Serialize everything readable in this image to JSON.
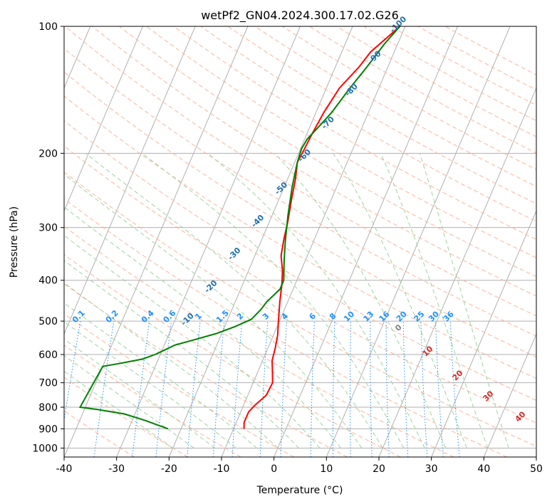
{
  "chart_data": {
    "type": "line",
    "title": "wetPf2_GN04.2024.300.17.02.G26",
    "xlabel": "Temperature (°C)",
    "ylabel": "Pressure (hPa)",
    "xlim": [
      -40,
      50
    ],
    "ylim": [
      1050,
      100
    ],
    "y_scale": "log",
    "grid": true,
    "x_ticks": [
      -40,
      -30,
      -20,
      -10,
      0,
      10,
      20,
      30,
      40,
      50
    ],
    "y_ticks": [
      100,
      200,
      300,
      400,
      500,
      600,
      700,
      800,
      900,
      1000
    ],
    "colors": {
      "temperature": "#ff0000",
      "dewpoint": "#008000",
      "isotherm": "#b0b0b0",
      "dry_adiabat": "#ffb39a",
      "moist_adiabat": "#9fd39f",
      "mixing_ratio": "#1f8fff",
      "moist_label": "#1f6fb0",
      "warm_label": "#d62728",
      "zero_label": "#808080"
    },
    "series": [
      {
        "values": [
          {
            "p": 900,
            "t": -8.0
          },
          {
            "p": 870,
            "t": -8.5
          },
          {
            "p": 820,
            "t": -8.5
          },
          {
            "p": 790,
            "t": -7.8
          },
          {
            "p": 750,
            "t": -6.5
          },
          {
            "p": 700,
            "t": -6.3
          },
          {
            "p": 660,
            "t": -7.2
          },
          {
            "p": 620,
            "t": -8.2
          },
          {
            "p": 580,
            "t": -8.6
          },
          {
            "p": 540,
            "t": -9.2
          },
          {
            "p": 500,
            "t": -10.2
          },
          {
            "p": 450,
            "t": -11.5
          },
          {
            "p": 410,
            "t": -12.5
          },
          {
            "p": 380,
            "t": -13.5
          },
          {
            "p": 350,
            "t": -15.0
          },
          {
            "p": 320,
            "t": -15.8
          },
          {
            "p": 290,
            "t": -16.5
          },
          {
            "p": 260,
            "t": -17.5
          },
          {
            "p": 230,
            "t": -18.5
          },
          {
            "p": 210,
            "t": -19.5
          },
          {
            "p": 200,
            "t": -19.3
          },
          {
            "p": 180,
            "t": -19.0
          },
          {
            "p": 160,
            "t": -18.5
          },
          {
            "p": 140,
            "t": -17.5
          },
          {
            "p": 125,
            "t": -15.5
          },
          {
            "p": 115,
            "t": -14.5
          },
          {
            "p": 100,
            "t": -11.0
          }
        ]
      },
      {
        "values": [
          {
            "p": 900,
            "t": -22.5
          },
          {
            "p": 880,
            "t": -25.0
          },
          {
            "p": 860,
            "t": -27.5
          },
          {
            "p": 830,
            "t": -32.0
          },
          {
            "p": 810,
            "t": -37.5
          },
          {
            "p": 800,
            "t": -41.0
          },
          {
            "p": 640,
            "t": -40.0
          },
          {
            "p": 630,
            "t": -37.0
          },
          {
            "p": 615,
            "t": -33.0
          },
          {
            "p": 600,
            "t": -31.0
          },
          {
            "p": 590,
            "t": -30.0
          },
          {
            "p": 580,
            "t": -29.0
          },
          {
            "p": 570,
            "t": -28.0
          },
          {
            "p": 555,
            "t": -25.0
          },
          {
            "p": 535,
            "t": -21.0
          },
          {
            "p": 515,
            "t": -18.0
          },
          {
            "p": 495,
            "t": -15.5
          },
          {
            "p": 470,
            "t": -14.5
          },
          {
            "p": 450,
            "t": -14.0
          },
          {
            "p": 420,
            "t": -12.5
          },
          {
            "p": 400,
            "t": -12.5
          },
          {
            "p": 360,
            "t": -14.0
          },
          {
            "p": 320,
            "t": -15.5
          },
          {
            "p": 280,
            "t": -17.0
          },
          {
            "p": 240,
            "t": -18.5
          },
          {
            "p": 210,
            "t": -19.5
          },
          {
            "p": 195,
            "t": -19.8
          },
          {
            "p": 185,
            "t": -19.5
          },
          {
            "p": 175,
            "t": -18.5
          },
          {
            "p": 160,
            "t": -17.0
          },
          {
            "p": 140,
            "t": -15.5
          },
          {
            "p": 125,
            "t": -14.0
          },
          {
            "p": 110,
            "t": -12.5
          },
          {
            "p": 100,
            "t": -11.0
          }
        ]
      }
    ],
    "mixing_ratio_labels": [
      "0.1",
      "0.2",
      "0.4",
      "0.6",
      "1",
      "1.5",
      "2",
      "3",
      "4",
      "6",
      "8",
      "10",
      "13",
      "16",
      "20",
      "25",
      "30",
      "36"
    ],
    "moist_adiabat_labels": [
      "-100",
      "-90",
      "-80",
      "-70",
      "-60",
      "-50",
      "-40",
      "-30",
      "-20",
      "-10",
      "0",
      "10",
      "20",
      "30",
      "40"
    ]
  }
}
